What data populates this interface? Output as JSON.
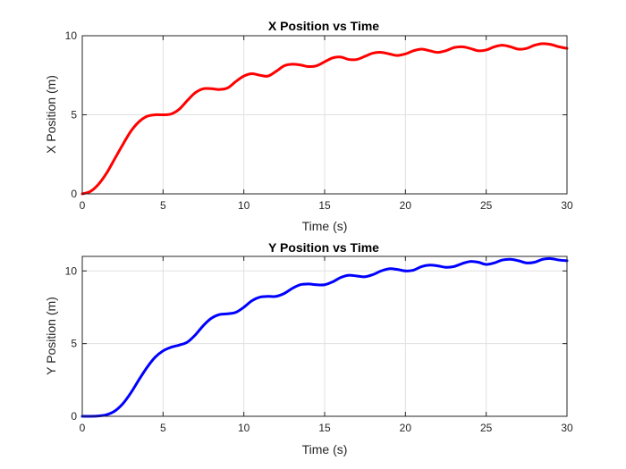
{
  "chart_data": [
    {
      "type": "line",
      "title": "X Position vs Time",
      "xlabel": "Time (s)",
      "ylabel": "X Position (m)",
      "xlim": [
        0,
        30
      ],
      "ylim": [
        0,
        10
      ],
      "xticks": [
        0,
        5,
        10,
        15,
        20,
        25,
        30
      ],
      "yticks": [
        0,
        5,
        10
      ],
      "grid": true,
      "color": "#ff0000",
      "series": [
        {
          "x": [
            0,
            0.5,
            1,
            1.5,
            2,
            2.5,
            3,
            3.5,
            4,
            4.5,
            5,
            5.5,
            6,
            6.5,
            7,
            7.5,
            8,
            8.5,
            9,
            9.5,
            10,
            10.5,
            11,
            11.5,
            12,
            12.5,
            13,
            13.5,
            14,
            14.5,
            15,
            15.5,
            16,
            16.5,
            17,
            17.5,
            18,
            18.5,
            19,
            19.5,
            20,
            20.5,
            21,
            21.5,
            22,
            22.5,
            23,
            23.5,
            24,
            24.5,
            25,
            25.5,
            26,
            26.5,
            27,
            27.5,
            28,
            28.5,
            29,
            29.5,
            30
          ],
          "y": [
            0,
            0.15,
            0.6,
            1.3,
            2.2,
            3.1,
            3.95,
            4.55,
            4.9,
            5.0,
            5.0,
            5.05,
            5.35,
            5.9,
            6.4,
            6.65,
            6.65,
            6.6,
            6.7,
            7.1,
            7.45,
            7.6,
            7.5,
            7.45,
            7.75,
            8.1,
            8.2,
            8.15,
            8.05,
            8.1,
            8.35,
            8.6,
            8.65,
            8.5,
            8.5,
            8.7,
            8.9,
            8.95,
            8.85,
            8.75,
            8.85,
            9.05,
            9.15,
            9.05,
            8.95,
            9.05,
            9.25,
            9.3,
            9.2,
            9.05,
            9.1,
            9.3,
            9.4,
            9.3,
            9.15,
            9.2,
            9.4,
            9.5,
            9.45,
            9.3,
            9.2
          ]
        }
      ]
    },
    {
      "type": "line",
      "title": "Y Position vs Time",
      "xlabel": "Time (s)",
      "ylabel": "Y Position (m)",
      "xlim": [
        0,
        30
      ],
      "ylim": [
        0,
        11
      ],
      "xticks": [
        0,
        5,
        10,
        15,
        20,
        25,
        30
      ],
      "yticks": [
        0,
        5,
        10
      ],
      "grid": true,
      "color": "#0000ff",
      "series": [
        {
          "x": [
            0,
            0.5,
            1,
            1.5,
            2,
            2.5,
            3,
            3.5,
            4,
            4.5,
            5,
            5.5,
            6,
            6.5,
            7,
            7.5,
            8,
            8.5,
            9,
            9.5,
            10,
            10.5,
            11,
            11.5,
            12,
            12.5,
            13,
            13.5,
            14,
            14.5,
            15,
            15.5,
            16,
            16.5,
            17,
            17.5,
            18,
            18.5,
            19,
            19.5,
            20,
            20.5,
            21,
            21.5,
            22,
            22.5,
            23,
            23.5,
            24,
            24.5,
            25,
            25.5,
            26,
            26.5,
            27,
            27.5,
            28,
            28.5,
            29,
            29.5,
            30
          ],
          "y": [
            0,
            0,
            0.02,
            0.1,
            0.35,
            0.85,
            1.6,
            2.5,
            3.35,
            4.05,
            4.5,
            4.75,
            4.9,
            5.1,
            5.6,
            6.25,
            6.75,
            7.0,
            7.05,
            7.15,
            7.5,
            7.95,
            8.2,
            8.25,
            8.25,
            8.45,
            8.8,
            9.05,
            9.1,
            9.05,
            9.05,
            9.25,
            9.55,
            9.7,
            9.65,
            9.6,
            9.75,
            10.0,
            10.15,
            10.1,
            10.0,
            10.05,
            10.3,
            10.4,
            10.35,
            10.25,
            10.3,
            10.5,
            10.65,
            10.6,
            10.45,
            10.55,
            10.75,
            10.8,
            10.7,
            10.55,
            10.6,
            10.8,
            10.85,
            10.75,
            10.7
          ]
        }
      ]
    }
  ]
}
